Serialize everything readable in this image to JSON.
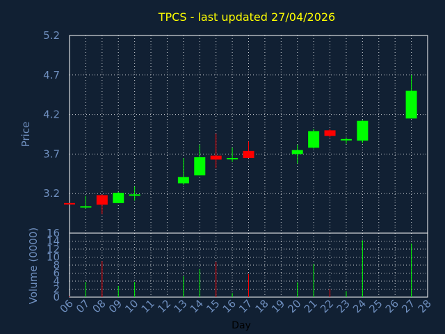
{
  "chart_data": [
    {
      "type": "candlestick",
      "title": "TPCS - last updated 27/04/2026",
      "ylabel": "Price",
      "ylim": [
        2.7,
        5.2
      ],
      "yticks": [
        "5.2",
        "4.7",
        "4.2",
        "3.7",
        "3.2"
      ],
      "grid": true,
      "colors": {
        "up": "#00ff00",
        "down": "#ff0000",
        "title": "#ffff00",
        "axis_text": "#6f8fbf",
        "background": "#112033",
        "grid": "#ffffff"
      },
      "candles": [
        {
          "day": 6,
          "open": 3.08,
          "high": 3.08,
          "low": 3.07,
          "close": 3.07
        },
        {
          "day": 7,
          "open": 3.03,
          "high": 3.17,
          "low": 3.01,
          "close": 3.04
        },
        {
          "day": 8,
          "open": 3.18,
          "high": 3.19,
          "low": 2.94,
          "close": 3.06
        },
        {
          "day": 9,
          "open": 3.08,
          "high": 3.22,
          "low": 3.08,
          "close": 3.21
        },
        {
          "day": 10,
          "open": 3.18,
          "high": 3.29,
          "low": 3.11,
          "close": 3.19
        },
        {
          "day": 13,
          "open": 3.33,
          "high": 3.65,
          "low": 3.31,
          "close": 3.41
        },
        {
          "day": 14,
          "open": 3.43,
          "high": 3.82,
          "low": 3.43,
          "close": 3.66
        },
        {
          "day": 15,
          "open": 3.68,
          "high": 3.96,
          "low": 3.52,
          "close": 3.63
        },
        {
          "day": 16,
          "open": 3.64,
          "high": 3.78,
          "low": 3.6,
          "close": 3.65
        },
        {
          "day": 17,
          "open": 3.74,
          "high": 3.86,
          "low": 3.65,
          "close": 3.65
        },
        {
          "day": 20,
          "open": 3.7,
          "high": 3.82,
          "low": 3.58,
          "close": 3.75
        },
        {
          "day": 21,
          "open": 3.78,
          "high": 4.02,
          "low": 3.77,
          "close": 3.99
        },
        {
          "day": 22,
          "open": 4.0,
          "high": 4.02,
          "low": 3.91,
          "close": 3.93
        },
        {
          "day": 23,
          "open": 3.88,
          "high": 3.91,
          "low": 3.83,
          "close": 3.89
        },
        {
          "day": 24,
          "open": 3.87,
          "high": 4.13,
          "low": 3.84,
          "close": 4.12
        },
        {
          "day": 27,
          "open": 4.15,
          "high": 4.7,
          "low": 4.15,
          "close": 4.5
        }
      ]
    },
    {
      "type": "bar",
      "ylabel": "Volume (0000)",
      "xlabel": "Day",
      "ylim": [
        0,
        16
      ],
      "yticks": [
        "16",
        "14",
        "12",
        "10",
        "8",
        "6",
        "4",
        "2",
        "0"
      ],
      "categories": [
        "06",
        "07",
        "08",
        "09",
        "10",
        "11",
        "12",
        "13",
        "14",
        "15",
        "16",
        "17",
        "18",
        "19",
        "20",
        "21",
        "22",
        "23",
        "24",
        "25",
        "26",
        "27",
        "28"
      ],
      "bars": [
        {
          "day": 6,
          "value": 0.2,
          "dir": "down"
        },
        {
          "day": 7,
          "value": 3.8,
          "dir": "up"
        },
        {
          "day": 8,
          "value": 9.0,
          "dir": "down"
        },
        {
          "day": 9,
          "value": 2.8,
          "dir": "up"
        },
        {
          "day": 10,
          "value": 3.8,
          "dir": "up"
        },
        {
          "day": 13,
          "value": 5.2,
          "dir": "up"
        },
        {
          "day": 14,
          "value": 7.0,
          "dir": "up"
        },
        {
          "day": 15,
          "value": 8.8,
          "dir": "down"
        },
        {
          "day": 16,
          "value": 1.0,
          "dir": "up"
        },
        {
          "day": 17,
          "value": 5.8,
          "dir": "down"
        },
        {
          "day": 20,
          "value": 3.7,
          "dir": "up"
        },
        {
          "day": 21,
          "value": 8.3,
          "dir": "up"
        },
        {
          "day": 22,
          "value": 2.0,
          "dir": "down"
        },
        {
          "day": 23,
          "value": 1.5,
          "dir": "up"
        },
        {
          "day": 24,
          "value": 14.2,
          "dir": "up"
        },
        {
          "day": 27,
          "value": 13.4,
          "dir": "up"
        }
      ]
    }
  ]
}
